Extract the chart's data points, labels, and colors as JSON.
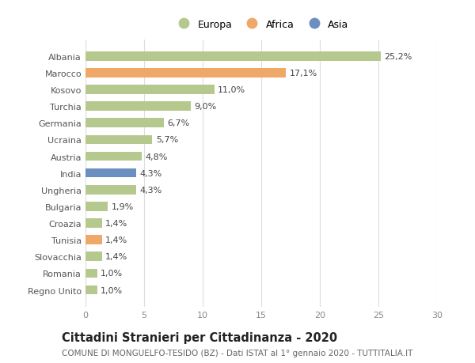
{
  "categories": [
    "Albania",
    "Marocco",
    "Kosovo",
    "Turchia",
    "Germania",
    "Ucraina",
    "Austria",
    "India",
    "Ungheria",
    "Bulgaria",
    "Croazia",
    "Tunisia",
    "Slovacchia",
    "Romania",
    "Regno Unito"
  ],
  "values": [
    25.2,
    17.1,
    11.0,
    9.0,
    6.7,
    5.7,
    4.8,
    4.3,
    4.3,
    1.9,
    1.4,
    1.4,
    1.4,
    1.0,
    1.0
  ],
  "labels": [
    "25,2%",
    "17,1%",
    "11,0%",
    "9,0%",
    "6,7%",
    "5,7%",
    "4,8%",
    "4,3%",
    "4,3%",
    "1,9%",
    "1,4%",
    "1,4%",
    "1,4%",
    "1,0%",
    "1,0%"
  ],
  "colors": [
    "#b5c98e",
    "#f0a868",
    "#b5c98e",
    "#b5c98e",
    "#b5c98e",
    "#b5c98e",
    "#b5c98e",
    "#6a8fc0",
    "#b5c98e",
    "#b5c98e",
    "#b5c98e",
    "#f0a868",
    "#b5c98e",
    "#b5c98e",
    "#b5c98e"
  ],
  "legend_labels": [
    "Europa",
    "Africa",
    "Asia"
  ],
  "legend_colors": [
    "#b5c98e",
    "#f0a868",
    "#6a8fc0"
  ],
  "title1": "Cittadini Stranieri per Cittadinanza - 2020",
  "title2": "COMUNE DI MONGUELFO-TESIDO (BZ) - Dati ISTAT al 1° gennaio 2020 - TUTTITALIA.IT",
  "xlim": [
    0,
    30
  ],
  "xticks": [
    0,
    5,
    10,
    15,
    20,
    25,
    30
  ],
  "background_color": "#ffffff",
  "grid_color": "#dddddd",
  "bar_height": 0.55,
  "label_fontsize": 8,
  "tick_fontsize": 8,
  "title1_fontsize": 10.5,
  "title2_fontsize": 7.5
}
